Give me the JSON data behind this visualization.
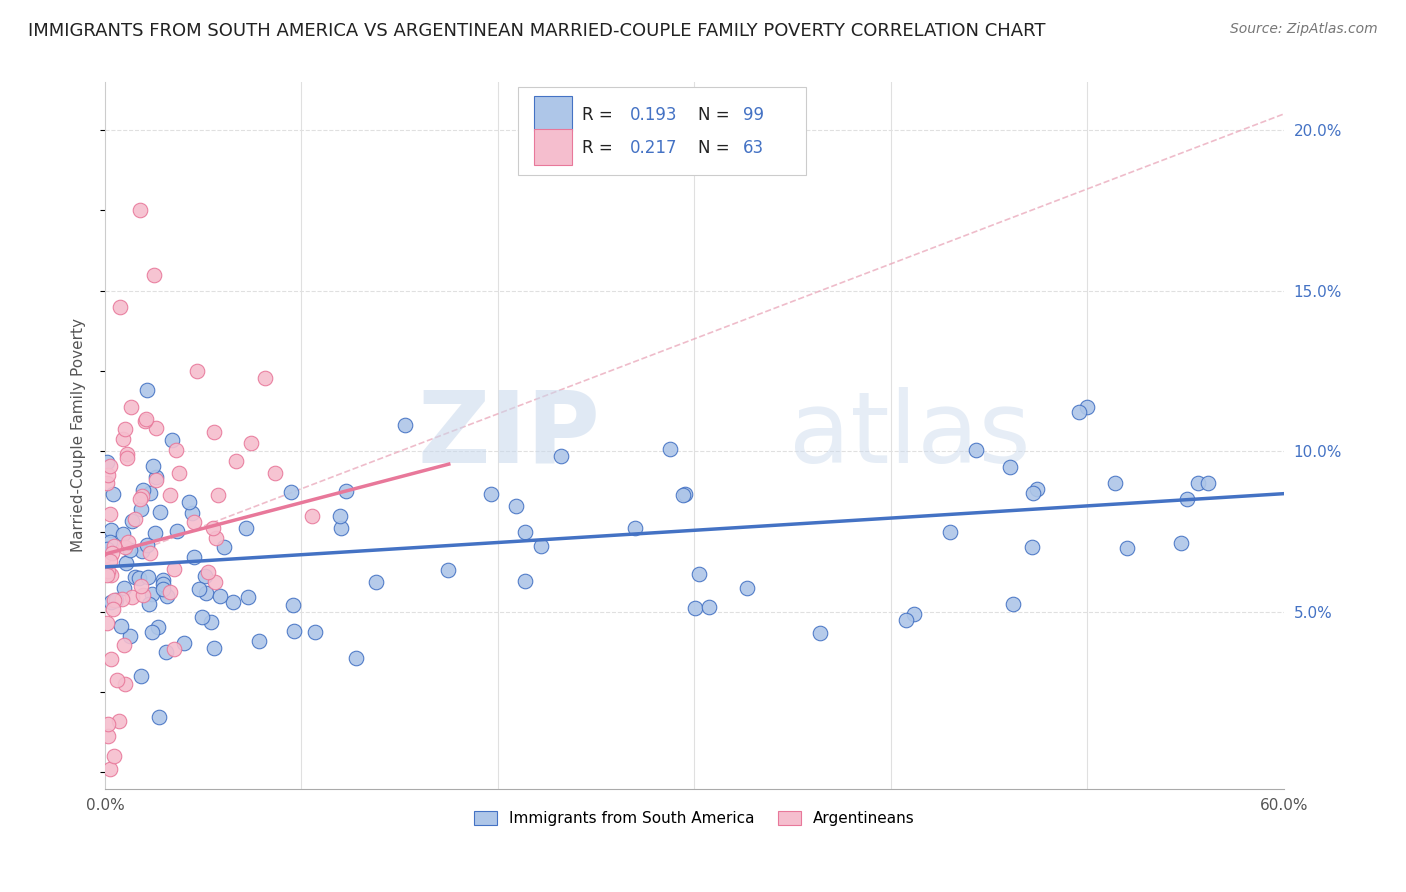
{
  "title": "IMMIGRANTS FROM SOUTH AMERICA VS ARGENTINEAN MARRIED-COUPLE FAMILY POVERTY CORRELATION CHART",
  "source": "Source: ZipAtlas.com",
  "ylabel": "Married-Couple Family Poverty",
  "xlim": [
    0.0,
    0.6
  ],
  "ylim": [
    -0.005,
    0.215
  ],
  "xticks": [
    0.0,
    0.1,
    0.2,
    0.3,
    0.4,
    0.5,
    0.6
  ],
  "xtick_labels": [
    "0.0%",
    "",
    "",
    "",
    "",
    "",
    "60.0%"
  ],
  "yticks_right": [
    0.05,
    0.1,
    0.15,
    0.2
  ],
  "ytick_labels_right": [
    "5.0%",
    "10.0%",
    "15.0%",
    "20.0%"
  ],
  "blue_color": "#aec6e8",
  "pink_color": "#f5bece",
  "blue_edge_color": "#4472c4",
  "pink_edge_color": "#e8789a",
  "blue_line_color": "#4472c4",
  "pink_line_color": "#e8789a",
  "ref_line_color": "#cccccc",
  "legend_label1": "Immigrants from South America",
  "legend_label2": "Argentineans",
  "watermark": "ZIPatlas",
  "title_fontsize": 13,
  "axis_label_fontsize": 11,
  "tick_fontsize": 11,
  "legend_fontsize": 12,
  "blue_N": 99,
  "pink_N": 63,
  "blue_intercept": 0.064,
  "blue_slope": 0.038,
  "pink_intercept": 0.068,
  "pink_slope": 0.16,
  "pink_trend_xmax": 0.175,
  "ref_line_x": [
    0.0,
    0.6
  ],
  "ref_line_y": [
    0.065,
    0.205
  ],
  "background_color": "#ffffff",
  "grid_color": "#e0e0e0"
}
